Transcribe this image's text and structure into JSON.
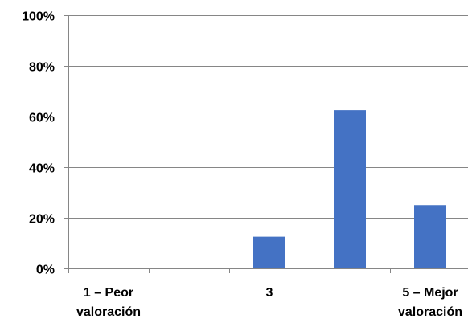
{
  "chart_data": {
    "type": "bar",
    "categories": [
      [
        "1 – Peor",
        "valoración"
      ],
      [
        ""
      ],
      [
        "3"
      ],
      [
        ""
      ],
      [
        "5 – Mejor",
        "valoración"
      ]
    ],
    "values": [
      0,
      0,
      12.5,
      62.5,
      25
    ],
    "ylim": [
      0,
      100
    ],
    "yticks": [
      "0%",
      "20%",
      "40%",
      "60%",
      "80%",
      "100%"
    ],
    "grid": true,
    "bar_color": "#4472C4",
    "axis_color": "#868686"
  }
}
